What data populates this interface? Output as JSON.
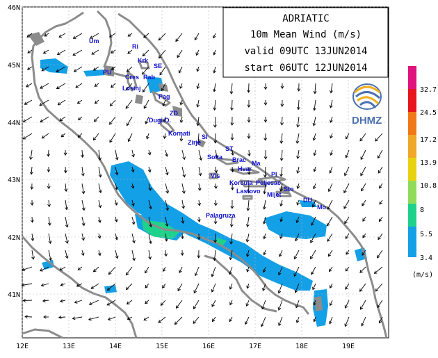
{
  "title": {
    "region": "ADRIATIC",
    "variable": "10m Mean Wind (m/s)",
    "valid": "valid 09UTC 13JUN2014",
    "start": "start 06UTC 12JUN2014"
  },
  "logo": {
    "text": "DHMZ"
  },
  "axes": {
    "lon_ticks": [
      "12E",
      "13E",
      "14E",
      "15E",
      "16E",
      "17E",
      "18E",
      "19E"
    ],
    "lat_ticks": [
      "46N",
      "45N",
      "44N",
      "43N",
      "42N",
      "41N"
    ]
  },
  "colorbar": {
    "unit": "(m/s)",
    "labels": [
      "32.7",
      "24.5",
      "17.2",
      "13.9",
      "10.8",
      "8",
      "5.5",
      "3.4"
    ],
    "colors": [
      "#e0147e",
      "#e8141e",
      "#f07818",
      "#f0a828",
      "#e8d210",
      "#90dc5a",
      "#1ed28c",
      "#14a0e6"
    ]
  },
  "places": [
    {
      "name": "Um"
    },
    {
      "name": "Ri"
    },
    {
      "name": "Krk"
    },
    {
      "name": "SE"
    },
    {
      "name": "PU"
    },
    {
      "name": "Cres"
    },
    {
      "name": "Rab"
    },
    {
      "name": "Losinj"
    },
    {
      "name": "Pag"
    },
    {
      "name": "ZD"
    },
    {
      "name": "Dugi O."
    },
    {
      "name": "Kornati"
    },
    {
      "name": "SI"
    },
    {
      "name": "Zirje"
    },
    {
      "name": "ST"
    },
    {
      "name": "Solta"
    },
    {
      "name": "Brac"
    },
    {
      "name": "Ma"
    },
    {
      "name": "Hvar"
    },
    {
      "name": "Pl"
    },
    {
      "name": "Vis"
    },
    {
      "name": "Korcula"
    },
    {
      "name": "Peljesac"
    },
    {
      "name": "Sto"
    },
    {
      "name": "Lastovo"
    },
    {
      "name": "Mljet"
    },
    {
      "name": "DU"
    },
    {
      "name": "Mo"
    },
    {
      "name": "Palagruza"
    }
  ],
  "colors": {
    "land": "#8c8c8c",
    "wind_zone": "#14a0e6",
    "strong_zone": "#1ed28c",
    "vector": "#000000",
    "grid": "#b4b4b4"
  }
}
